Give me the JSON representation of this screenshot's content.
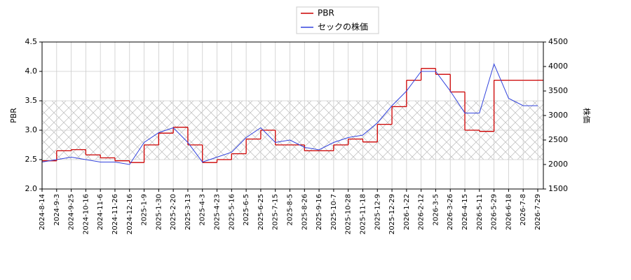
{
  "chart_data": {
    "type": "line",
    "x": [
      "2024-8-14",
      "2024-9-3",
      "2024-9-25",
      "2024-10-16",
      "2024-11-6",
      "2024-11-26",
      "2024-12-16",
      "2025-1-9",
      "2025-1-30",
      "2025-2-20",
      "2025-3-13",
      "2025-4-3",
      "2025-4-23",
      "2025-5-16",
      "2025-6-5",
      "2025-6-25",
      "2025-7-15",
      "2025-8-5",
      "2025-8-26",
      "2025-9-16",
      "2025-10-7",
      "2025-10-28",
      "2025-11-18",
      "2025-12-9",
      "2025-12-29",
      "2026-1-22",
      "2026-2-12",
      "2026-3-5",
      "2026-3-26",
      "2026-4-15",
      "2026-5-11",
      "2026-5-29",
      "2026-6-18",
      "2026-7-8",
      "2026-7-29"
    ],
    "series": [
      {
        "name": "PBR",
        "color": "#cc0000",
        "step": true,
        "values": [
          2.48,
          2.65,
          2.67,
          2.58,
          2.53,
          2.48,
          2.45,
          2.75,
          2.95,
          3.05,
          2.75,
          2.45,
          2.5,
          2.6,
          2.85,
          3.0,
          2.75,
          2.75,
          2.65,
          2.65,
          2.75,
          2.85,
          2.8,
          3.1,
          3.4,
          3.85,
          4.05,
          3.95,
          3.65,
          3.0,
          2.98,
          3.85,
          3.85,
          3.85,
          3.85
        ]
      },
      {
        "name": "セックの株価",
        "color": "#3344dd",
        "axis": "y2",
        "values": [
          2050,
          2100,
          2150,
          2100,
          2050,
          2050,
          2000,
          2450,
          2650,
          2750,
          2450,
          2050,
          2150,
          2250,
          2550,
          2750,
          2450,
          2500,
          2350,
          2300,
          2450,
          2550,
          2600,
          2850,
          3200,
          3500,
          3900,
          3900,
          3500,
          3050,
          3050,
          4050,
          3350,
          3200,
          3200
        ]
      }
    ],
    "ylabel": "PBR",
    "y2label": "株価",
    "ylim": [
      2.0,
      4.5
    ],
    "yticks": [
      {
        "value": 2,
        "label": "2.0"
      },
      {
        "value": 2.5,
        "label": "2.5"
      },
      {
        "value": 3,
        "label": "3.0"
      },
      {
        "value": 3.5,
        "label": "3.5"
      },
      {
        "value": 4,
        "label": "4.0"
      },
      {
        "value": 4.5,
        "label": "4.5"
      }
    ],
    "y2lim": [
      1500,
      4500
    ],
    "y2ticks": [
      1500,
      2000,
      2500,
      3000,
      3500,
      4000,
      4500
    ],
    "hatch_band": [
      2.5,
      3.5
    ],
    "grid": true,
    "legend": "top"
  }
}
